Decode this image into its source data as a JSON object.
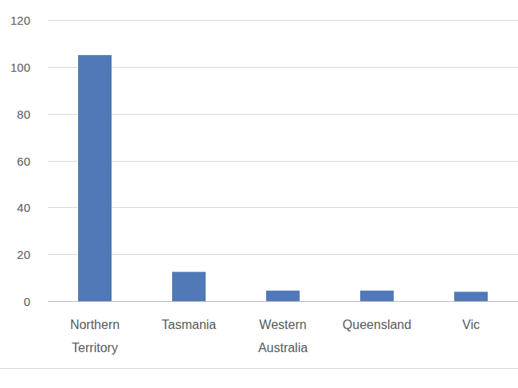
{
  "chart_data": {
    "type": "bar",
    "categories": [
      "Northern Territory",
      "Tasmania",
      "Western Australia",
      "Queensland",
      "Vic"
    ],
    "values": [
      105,
      12.5,
      4.5,
      4.5,
      4
    ],
    "color": "#5279b7",
    "ylim": [
      0,
      120
    ],
    "yticks": [
      0,
      20,
      40,
      60,
      80,
      100,
      120
    ],
    "grid": true
  }
}
